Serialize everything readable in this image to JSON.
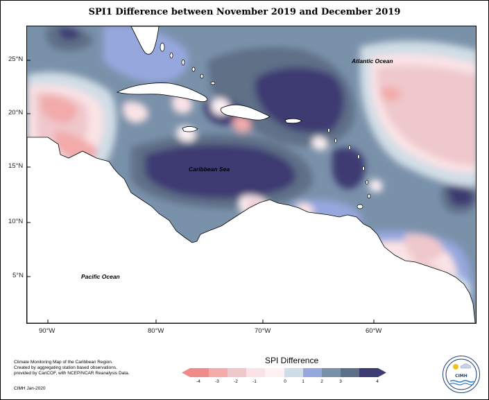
{
  "title": "SPI1 Difference between November 2019 and December 2019",
  "map": {
    "x_ticks": [
      "90°W",
      "80°W",
      "70°W",
      "60°W"
    ],
    "y_ticks": [
      "25°N",
      "20°N",
      "15°N",
      "10°N",
      "5°N"
    ],
    "ocean_labels": {
      "atlantic": "Atlantic Ocean",
      "caribbean": "Caribbean Sea",
      "pacific": "Pacific Ocean"
    },
    "color_scale_hex": [
      "#f08b8b",
      "#f2aaaa",
      "#efc8cc",
      "#fae3e6",
      "#fdf1f3",
      "#d0dde6",
      "#96a7de",
      "#7a91aa",
      "#5e7087",
      "#3c3b72"
    ]
  },
  "legend": {
    "title": "SPI Difference",
    "ticks": [
      "-4",
      "-3",
      "-2",
      "-1",
      "0",
      "1",
      "2",
      "3",
      "4"
    ]
  },
  "credits": {
    "line1": "Climate Monitoring Map of the Caribbean Region.",
    "line2": "Created by aggregating station based observations,",
    "line3": "provided by CariCOF, with NCEP/NCAR Reanalysis Data.",
    "footer": "CIMH Jan-2020"
  },
  "logo": {
    "text": "CIMH",
    "icon": "cimh-logo-icon"
  }
}
